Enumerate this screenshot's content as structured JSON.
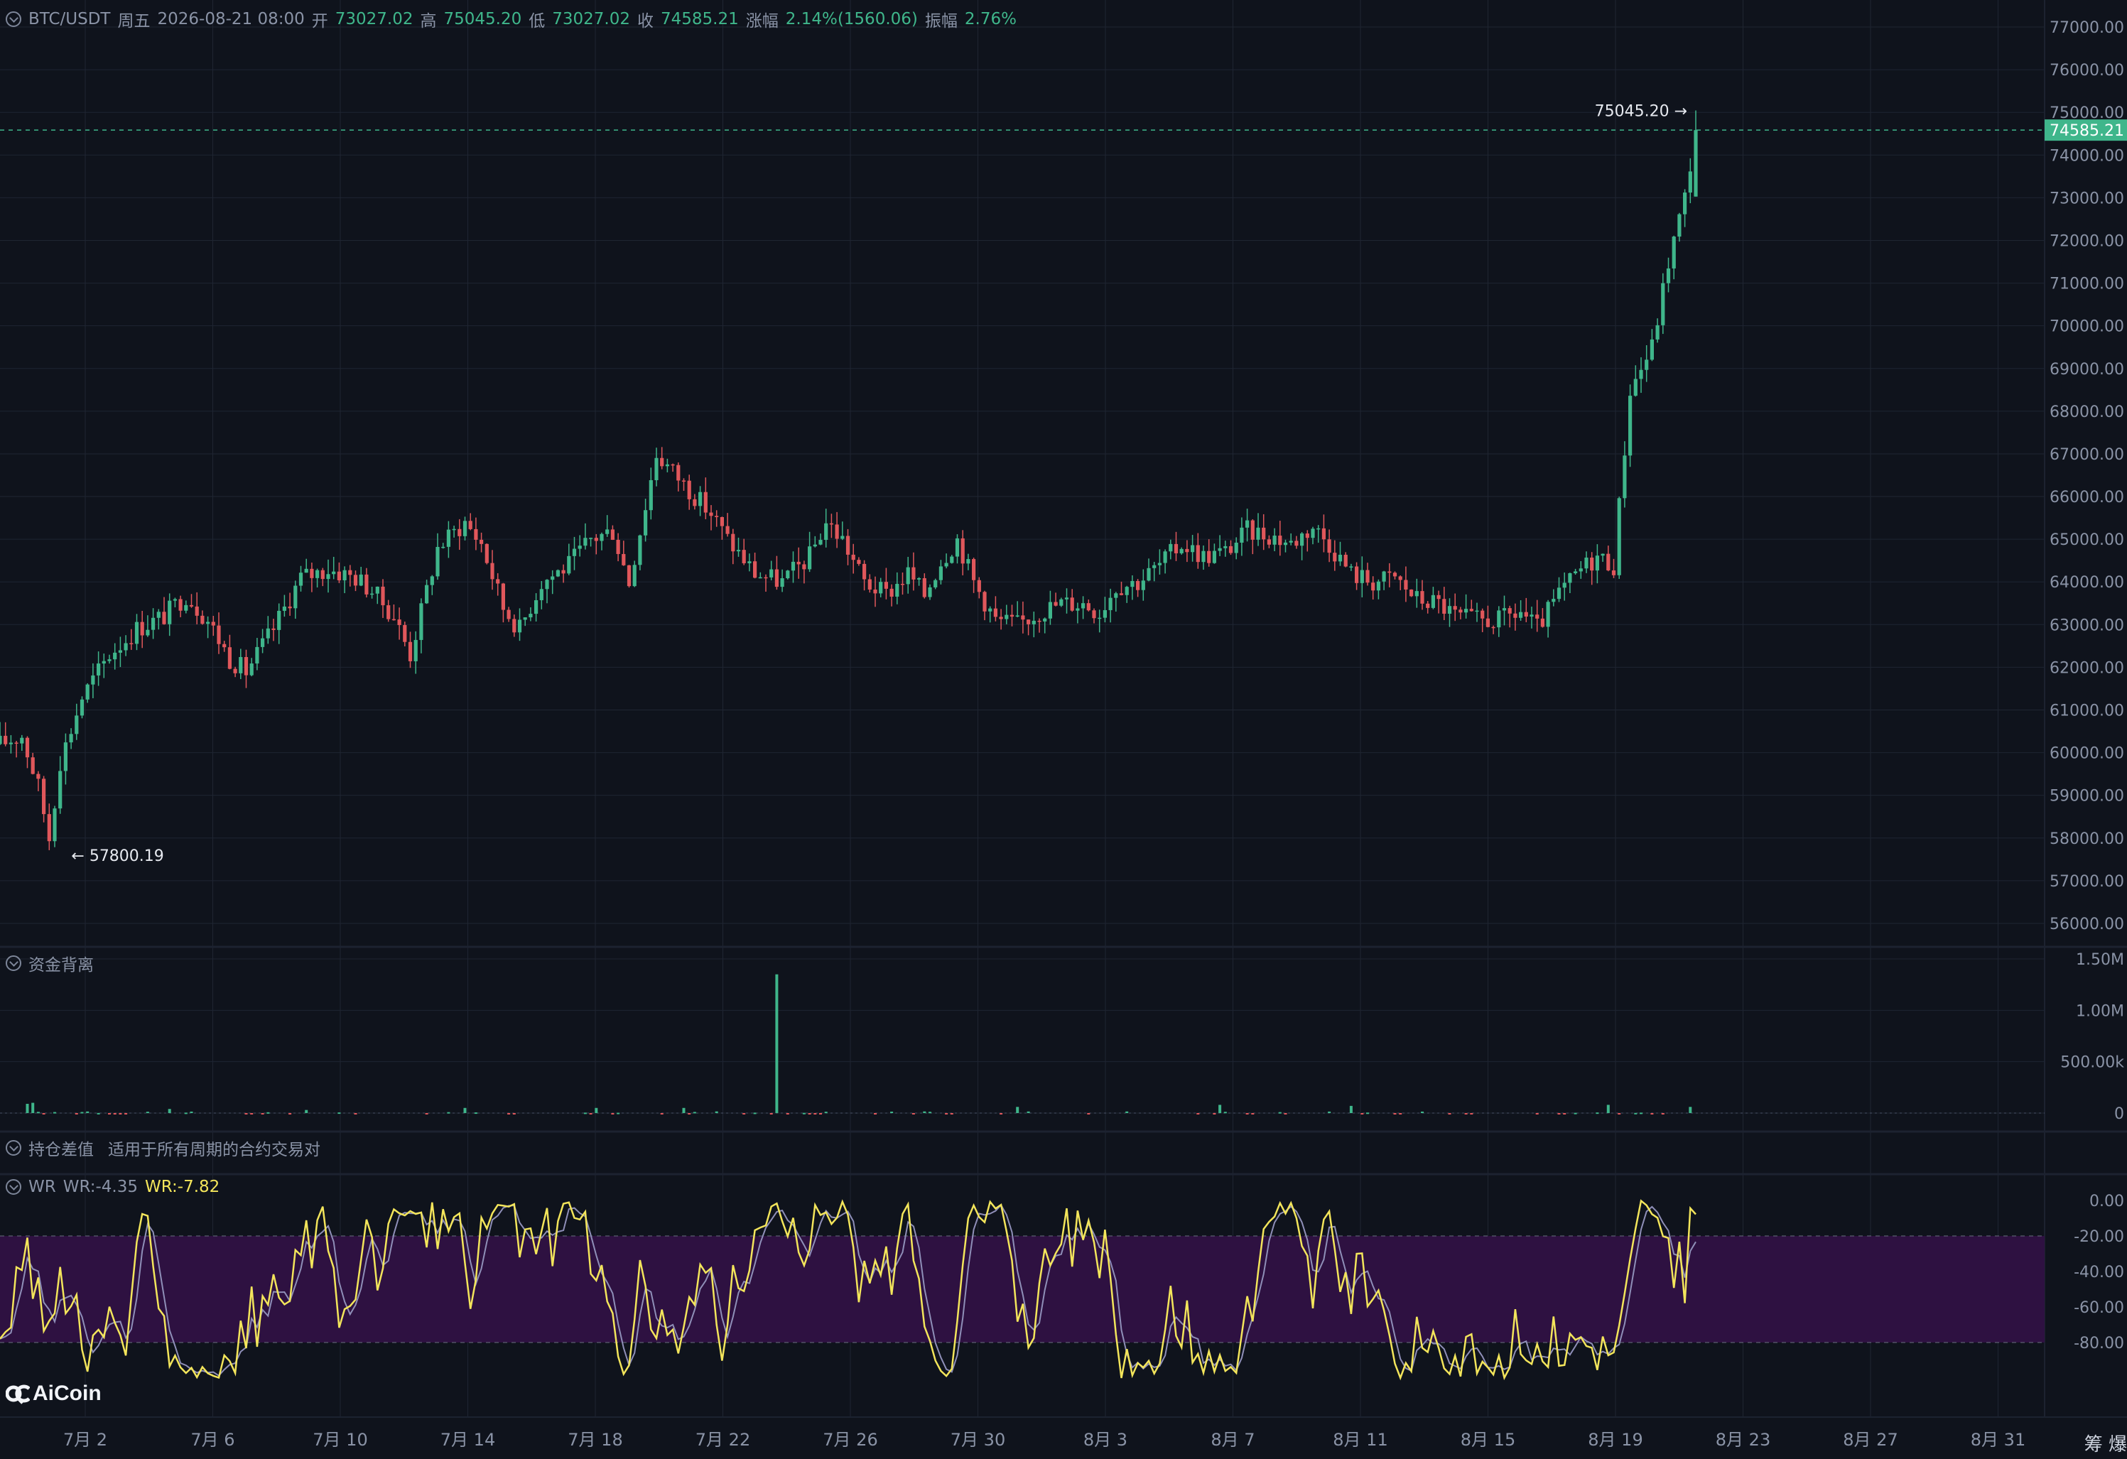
{
  "header": {
    "symbol": "BTC/USDT",
    "weekday": "周五",
    "datetime": "2026-08-21 08:00",
    "open_label": "开",
    "open": "73027.02",
    "high_label": "高",
    "high": "75045.20",
    "low_label": "低",
    "low": "73027.02",
    "close_label": "收",
    "close": "74585.21",
    "change_label": "涨幅",
    "change": "2.14%(1560.06)",
    "amplitude_label": "振幅",
    "amplitude": "2.76%"
  },
  "panels": {
    "fund_divergence_title": "资金背离",
    "oi_diff_title": "持仓差值",
    "oi_diff_note": "适用于所有周期的合约交易对",
    "wr_title": "WR",
    "wr1": "WR:-4.35",
    "wr2": "WR:-7.82"
  },
  "logo": "AiCoin",
  "corner_text": "筹 爆",
  "colors": {
    "up": "#3fb68b",
    "down": "#e0575b",
    "wr_main": "#f3e55b",
    "wr_signal": "#8f8fb8",
    "wr_band": "#2e1141",
    "bg": "#0f131c",
    "grid": "#1f2532"
  },
  "chart_data": [
    {
      "type": "candlestick",
      "title": "BTC/USDT",
      "x_ticks": [
        "7月 2",
        "7月 6",
        "7月 10",
        "7月 14",
        "7月 18",
        "7月 22",
        "7月 26",
        "7月 30",
        "8月 3",
        "8月 7",
        "8月 11",
        "8月 15",
        "8月 19",
        "8月 23",
        "8月 27",
        "8月 31"
      ],
      "y_ticks": [
        "77000.00",
        "76000.00",
        "75000.00",
        "74000.00",
        "73000.00",
        "72000.00",
        "71000.00",
        "70000.00",
        "69000.00",
        "68000.00",
        "67000.00",
        "66000.00",
        "65000.00",
        "64000.00",
        "63000.00",
        "62000.00",
        "61000.00",
        "60000.00",
        "59000.00",
        "58000.00",
        "57000.00",
        "56000.00"
      ],
      "ylim": [
        55500,
        77300
      ],
      "last_price": "74585.21",
      "max_label": "75045.20",
      "min_label": "57800.19",
      "close_path": [
        [
          0,
          60200
        ],
        [
          4,
          60400
        ],
        [
          7,
          59200
        ],
        [
          9,
          58000
        ],
        [
          11,
          59800
        ],
        [
          15,
          61300
        ],
        [
          20,
          62300
        ],
        [
          25,
          62900
        ],
        [
          30,
          63200
        ],
        [
          34,
          63700
        ],
        [
          38,
          63100
        ],
        [
          42,
          62200
        ],
        [
          45,
          61900
        ],
        [
          50,
          62900
        ],
        [
          55,
          64100
        ],
        [
          60,
          64300
        ],
        [
          65,
          64100
        ],
        [
          68,
          63800
        ],
        [
          72,
          63200
        ],
        [
          75,
          62300
        ],
        [
          80,
          64800
        ],
        [
          85,
          65400
        ],
        [
          88,
          64900
        ],
        [
          92,
          63400
        ],
        [
          95,
          62900
        ],
        [
          99,
          64000
        ],
        [
          104,
          64400
        ],
        [
          108,
          65000
        ],
        [
          112,
          65200
        ],
        [
          115,
          64000
        ],
        [
          120,
          67000
        ],
        [
          125,
          66300
        ],
        [
          130,
          65600
        ],
        [
          133,
          65000
        ],
        [
          138,
          64200
        ],
        [
          143,
          64000
        ],
        [
          148,
          64600
        ],
        [
          151,
          65400
        ],
        [
          154,
          65000
        ],
        [
          158,
          64000
        ],
        [
          162,
          63700
        ],
        [
          166,
          64200
        ],
        [
          169,
          63700
        ],
        [
          172,
          64500
        ],
        [
          175,
          65000
        ],
        [
          178,
          64000
        ],
        [
          182,
          63100
        ],
        [
          186,
          63000
        ],
        [
          190,
          63300
        ],
        [
          194,
          63500
        ],
        [
          198,
          63500
        ],
        [
          201,
          63300
        ],
        [
          204,
          63900
        ],
        [
          208,
          64000
        ],
        [
          212,
          64400
        ],
        [
          216,
          64900
        ],
        [
          220,
          64600
        ],
        [
          224,
          64700
        ],
        [
          228,
          65200
        ],
        [
          232,
          65100
        ],
        [
          236,
          64900
        ],
        [
          240,
          65300
        ],
        [
          243,
          64900
        ],
        [
          247,
          64200
        ],
        [
          251,
          64000
        ],
        [
          255,
          64100
        ],
        [
          259,
          63600
        ],
        [
          263,
          63500
        ],
        [
          266,
          63200
        ],
        [
          270,
          63100
        ],
        [
          274,
          63100
        ],
        [
          278,
          63300
        ],
        [
          281,
          62900
        ],
        [
          285,
          63700
        ],
        [
          289,
          64300
        ],
        [
          292,
          64600
        ],
        [
          295,
          64400
        ],
        [
          298,
          68500
        ],
        [
          302,
          69500
        ],
        [
          305,
          71500
        ],
        [
          308,
          73000
        ],
        [
          310,
          74585
        ]
      ],
      "wr_bands": [
        -20,
        -80
      ],
      "wr_ticks": [
        "0.00",
        "-20.00",
        "-40.00",
        "-60.00",
        "-80.00"
      ],
      "fund_ticks": [
        "1.50M",
        "1.00M",
        "500.00k",
        "0"
      ]
    }
  ]
}
